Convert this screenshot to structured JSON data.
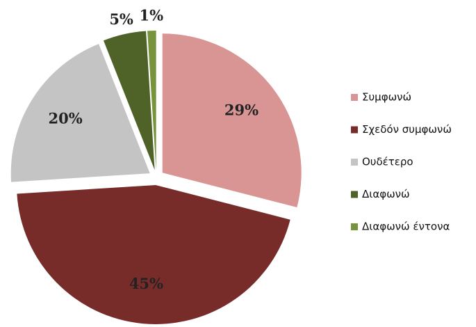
{
  "chart_data": {
    "type": "pie",
    "categories": [
      "Συμφωνώ",
      "Σχεδόν συμφωνώ",
      "Ουδέτερο",
      "Διαφωνώ",
      "Διαφωνώ έντονα"
    ],
    "values": [
      29,
      45,
      20,
      5,
      1
    ],
    "value_labels": [
      "29%",
      "45%",
      "20%",
      "5%",
      "1%"
    ],
    "colors": [
      "#d99594",
      "#772c2a",
      "#c4c4c4",
      "#4f6228",
      "#77933c"
    ],
    "legend": "right"
  }
}
